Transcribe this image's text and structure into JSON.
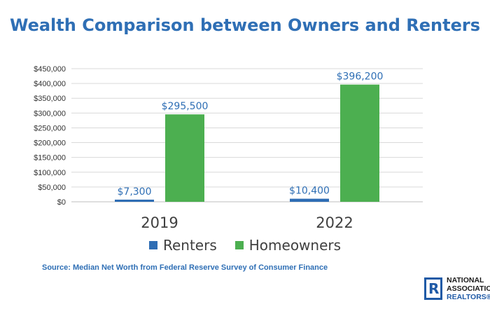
{
  "chart_data": {
    "type": "bar",
    "title": "Wealth Comparison between Owners and Renters",
    "categories": [
      "2019",
      "2022"
    ],
    "series": [
      {
        "name": "Renters",
        "values": [
          7300,
          10400
        ],
        "labels": [
          "$7,300",
          "$10,400"
        ],
        "color": "#2e6db4"
      },
      {
        "name": "Homeowners",
        "values": [
          295500,
          396200
        ],
        "labels": [
          "$295,500",
          "$396,200"
        ],
        "color": "#4caf50"
      }
    ],
    "yticks": [
      "$0",
      "$50,000",
      "$100,000",
      "$150,000",
      "$200,000",
      "$250,000",
      "$300,000",
      "$350,000",
      "$400,000",
      "$450,000"
    ],
    "ylim": [
      0,
      450000
    ],
    "grid": true,
    "legend_position": "bottom"
  },
  "source": "Source: Median Net Worth from Federal Reserve Survey of Consumer Finance",
  "logo": {
    "line1": "NATIONAL",
    "line2": "ASSOCIATION",
    "line3": "REALTORS®",
    "mark": "R"
  }
}
